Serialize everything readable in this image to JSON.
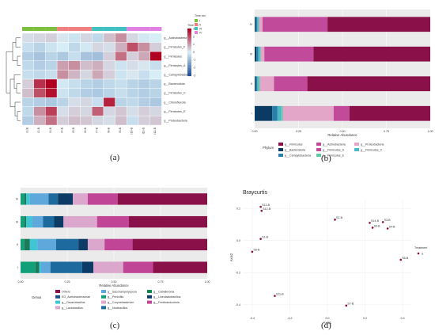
{
  "captions": [
    "(a)",
    "(b)",
    "(c)",
    "(d)"
  ],
  "colors": {
    "heat_low": "#1f4e9a",
    "heat_mid": "#d8eef6",
    "heat_high": "#b00020",
    "time_I": "#7fbf3f",
    "time_II": "#f08080",
    "time_III": "#40c0c0",
    "time_IV": "#e080e0",
    "panel_bg": "#ebebeb",
    "point": "#8b0a3a"
  },
  "chart_data": [
    {
      "id": "a",
      "type": "heatmap",
      "legend_title": "Time ect",
      "scale_title": "Time ect",
      "scale_ticks": [
        "3",
        "2",
        "1",
        "0",
        "-1",
        "-2",
        "-3"
      ],
      "scale_range": [
        -3,
        3
      ],
      "annotation_legend": [
        "I",
        "II",
        "III",
        "IV"
      ],
      "rows": [
        "g__Actinobacteria",
        "g__Firmicutes_F",
        "g__Firmicutes",
        "g__Firmicutes_A",
        "g__Campylobacteria",
        "g__Bacteroidota",
        "g__Firmicutes_C",
        "g__Chloroflexota",
        "g__Firmicutes_E",
        "g__Proteobacteria"
      ],
      "columns": [
        "I1-B",
        "I2-B",
        "I3-B",
        "I4-B",
        "I5-B",
        "I6-B",
        "I7-B",
        "I8-B",
        "I9-B",
        "I10-B",
        "I11-B",
        "I12-B"
      ],
      "column_group": [
        0,
        0,
        0,
        1,
        1,
        1,
        2,
        2,
        2,
        3,
        3,
        3
      ],
      "values": [
        [
          0.2,
          0.3,
          0.4,
          0.1,
          -0.2,
          0.3,
          -0.4,
          0.6,
          1.2,
          0.3,
          -0.1,
          0.0
        ],
        [
          -0.3,
          -0.5,
          -0.2,
          0.0,
          -0.4,
          -0.1,
          0.3,
          0.2,
          0.8,
          2.0,
          1.2,
          0.4
        ],
        [
          -0.6,
          -0.8,
          -0.5,
          -0.7,
          -0.3,
          -0.8,
          -0.9,
          0.4,
          1.6,
          0.4,
          0.9,
          3.0
        ],
        [
          -0.4,
          -0.6,
          -0.5,
          1.0,
          1.2,
          0.6,
          0.8,
          0.3,
          -0.2,
          0.2,
          0.1,
          -0.3
        ],
        [
          -0.3,
          -0.4,
          -0.3,
          1.2,
          0.7,
          0.3,
          0.9,
          0.4,
          -0.2,
          0.1,
          -0.3,
          0.0
        ],
        [
          0.4,
          2.4,
          3.0,
          -0.1,
          -0.3,
          -0.5,
          -0.6,
          -0.4,
          -0.3,
          -0.5,
          -0.6,
          -0.5
        ],
        [
          0.6,
          2.0,
          2.8,
          -0.2,
          -0.4,
          -0.6,
          -0.7,
          -0.5,
          -0.3,
          -0.5,
          -0.6,
          -0.5
        ],
        [
          -0.5,
          -0.6,
          -0.7,
          -0.5,
          0.2,
          0.3,
          -0.3,
          2.6,
          -0.5,
          -0.4,
          -0.6,
          -0.7
        ],
        [
          -0.4,
          1.2,
          2.2,
          0.2,
          0.4,
          0.3,
          1.8,
          0.3,
          0.5,
          0.2,
          0.4,
          0.3
        ],
        [
          -0.6,
          0.8,
          1.6,
          0.4,
          0.6,
          0.5,
          0.3,
          0.2,
          0.6,
          -0.3,
          0.4,
          0.5
        ]
      ]
    },
    {
      "id": "b",
      "type": "bar",
      "orientation": "horizontal-stacked",
      "categories": [
        "IV",
        "III",
        "II",
        "I"
      ],
      "xlabel": "Relative Abundance",
      "xlim": [
        0,
        1
      ],
      "xticks": [
        "0.00",
        "0.25",
        "0.50",
        "0.75",
        "1.00"
      ],
      "legend_title": "Phylum",
      "series": [
        {
          "name": "g__Bacteroidota",
          "color": "#0b3a63",
          "values": [
            0.005,
            0.01,
            0.005,
            0.1
          ]
        },
        {
          "name": "g__Campylobacteria",
          "color": "#2a7fa8",
          "values": [
            0.01,
            0.01,
            0.01,
            0.03
          ]
        },
        {
          "name": "g__Firmicutes_C",
          "color": "#49b9c9",
          "values": [
            0.005,
            0.01,
            0.005,
            0.02
          ]
        },
        {
          "name": "g__Firmicutes_E",
          "color": "#63c9a9",
          "values": [
            0.005,
            0.005,
            0.01,
            0.01
          ]
        },
        {
          "name": "g__Proteobacteria",
          "color": "#e3a5c8",
          "values": [
            0.02,
            0.02,
            0.08,
            0.29
          ]
        },
        {
          "name": "g__Firmicutes_A",
          "color": "#c24a9b",
          "values": [
            0.37,
            0.28,
            0.19,
            0.09
          ]
        },
        {
          "name": "g__Firmicutes",
          "color": "#8a1049",
          "values": [
            0.585,
            0.665,
            0.7,
            0.46
          ]
        }
      ],
      "legend_order": [
        "g__Firmicutes",
        "g__Bacteroidota",
        "g__Campylobacteria",
        "g__Actinobacteria",
        "g__Firmicutes_A",
        "g__Firmicutes_E",
        "g__Proteobacteria",
        "g__Firmicutes_C"
      ],
      "legend_colors": [
        "#8a1049",
        "#0b3a63",
        "#2a7fa8",
        "#c24a9b",
        "#c24a9b",
        "#63c9a9",
        "#e3a5c8",
        "#49b9c9"
      ]
    },
    {
      "id": "c",
      "type": "bar",
      "orientation": "horizontal-stacked",
      "categories": [
        "IV",
        "III",
        "II",
        "I"
      ],
      "xlabel": "Relative Abundance",
      "xlim": [
        0,
        1
      ],
      "xticks": [
        "0.00",
        "0.25",
        "0.50",
        "0.75",
        "1.00"
      ],
      "legend_title": "Genus",
      "series": [
        {
          "name": "g__Oscarobacillus",
          "color": "#12a078",
          "values": [
            0.02,
            0.02,
            0.02,
            0.08
          ]
        },
        {
          "name": "g__Penicillia",
          "color": "#1b7a5a",
          "values": [
            0.01,
            0.01,
            0.03,
            0.02
          ]
        },
        {
          "name": "g__Corynebacterium",
          "color": "#3ec6d4",
          "values": [
            0.02,
            0.03,
            0.04,
            0.01
          ]
        },
        {
          "name": "g__Saccharopolyspora",
          "color": "#5fa8dc",
          "values": [
            0.1,
            0.06,
            0.1,
            0.05
          ]
        },
        {
          "name": "g__Lactobacillus",
          "color": "#1d6b9e",
          "values": [
            0.05,
            0.06,
            0.12,
            0.17
          ]
        },
        {
          "name": "g__Lineolactobacillus",
          "color": "#0c3c66",
          "values": [
            0.08,
            0.05,
            0.05,
            0.06
          ]
        },
        {
          "name": "g__Nocibacillus",
          "color": "#dba7cc",
          "values": [
            0.08,
            0.18,
            0.09,
            0.16
          ]
        },
        {
          "name": "g__Ferdinandcohnia",
          "color": "#c04597",
          "values": [
            0.16,
            0.17,
            0.15,
            0.16
          ]
        },
        {
          "name": "Others",
          "color": "#8a1049",
          "values": [
            0.48,
            0.42,
            0.4,
            0.29
          ]
        }
      ],
      "legend_items": [
        "Others",
        "EG_Acetobacteraceae",
        "g__Oscarobacillus",
        "g__Lactobacillus",
        "g__Saccharopolyspora",
        "g__Penicillia",
        "g__Corynebacterium",
        "g__Nocibacillus",
        "g__Caballeronia",
        "g__Lineolactobacillus",
        "g__Ferdinandcohnia"
      ],
      "legend_colors": [
        "#8a1049",
        "#1b4f8a",
        "#3ec6d4",
        "#dba7cc",
        "#5fa8dc",
        "#12a078",
        "#e3a5c8",
        "#1d6b9e",
        "#0e8a4f",
        "#0c3c66",
        "#c04597"
      ]
    },
    {
      "id": "d",
      "type": "scatter",
      "title": "Braycurtis",
      "xlabel": "Axis1",
      "ylabel": "Axis2",
      "xlim": [
        -0.45,
        0.45
      ],
      "ylim": [
        -0.46,
        0.25
      ],
      "xticks": [
        -0.4,
        -0.2,
        0.0,
        0.2,
        0.4
      ],
      "xtick_labels": [
        "-0.4",
        "-0.2",
        "0.0",
        "0.2",
        "0.4"
      ],
      "yticks": [
        0.2,
        0.0,
        -0.2,
        -0.4
      ],
      "ytick_labels": [
        "0.2",
        "0.0",
        "-0.2",
        "-0.4"
      ],
      "legend_title": "Treatment",
      "legend_items": [
        "a"
      ],
      "points": [
        {
          "label": "S13-B",
          "x": -0.355,
          "y": 0.21
        },
        {
          "label": "S12-B",
          "x": -0.35,
          "y": 0.185
        },
        {
          "label": "S2-B",
          "x": 0.04,
          "y": 0.13
        },
        {
          "label": "S14-B",
          "x": 0.225,
          "y": 0.11
        },
        {
          "label": "S3-B",
          "x": 0.295,
          "y": 0.115
        },
        {
          "label": "S9-B",
          "x": 0.24,
          "y": 0.08
        },
        {
          "label": "S4-B",
          "x": 0.32,
          "y": 0.075
        },
        {
          "label": "S1-B",
          "x": -0.355,
          "y": 0.01
        },
        {
          "label": "S8-B",
          "x": -0.4,
          "y": -0.07
        },
        {
          "label": "S6-B",
          "x": 0.39,
          "y": -0.12
        },
        {
          "label": "S11-B",
          "x": -0.28,
          "y": -0.345
        },
        {
          "label": "S7-B",
          "x": 0.1,
          "y": -0.405
        }
      ]
    }
  ]
}
